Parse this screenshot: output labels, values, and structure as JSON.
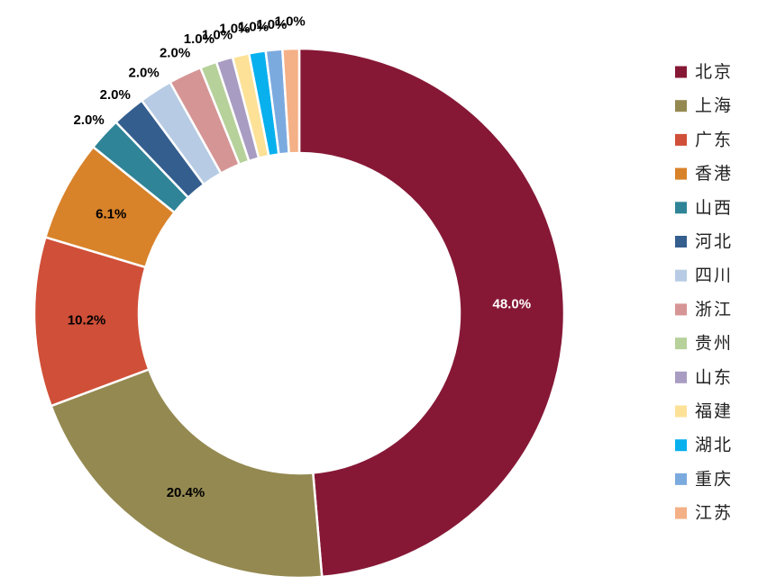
{
  "chart_data": {
    "type": "pie",
    "variant": "donut",
    "legend_position": "right",
    "categories": [
      "北京",
      "上海",
      "广东",
      "香港",
      "山西",
      "河北",
      "四川",
      "浙江",
      "贵州",
      "山东",
      "福建",
      "湖北",
      "重庆",
      "江苏"
    ],
    "values": [
      48.0,
      20.4,
      10.2,
      6.1,
      2.0,
      2.0,
      2.0,
      2.0,
      1.0,
      1.0,
      1.0,
      1.0,
      1.0,
      1.0
    ],
    "labels": [
      "48.0%",
      "20.4%",
      "10.2%",
      "6.1%",
      "2.0%",
      "2.0%",
      "2.0%",
      "2.0%",
      "1.0%",
      "1.0%",
      "1.0%",
      "1.0%",
      "1.0%",
      "1.0%"
    ],
    "colors": [
      "#861836",
      "#948951",
      "#D04F38",
      "#D8822A",
      "#2F8497",
      "#345E8E",
      "#B7CCE4",
      "#D69595",
      "#B6D19A",
      "#A89CC2",
      "#FCE197",
      "#08B0EE",
      "#7BAADF",
      "#F4B086"
    ],
    "label_colors": [
      "#FFFFFF",
      "#000000",
      "#000000",
      "#000000",
      "#000000",
      "#000000",
      "#000000",
      "#000000",
      "#000000",
      "#000000",
      "#000000",
      "#000000",
      "#000000",
      "#000000"
    ]
  }
}
